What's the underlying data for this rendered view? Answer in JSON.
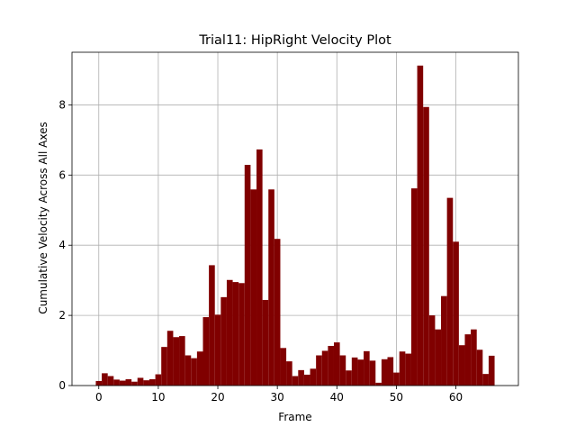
{
  "chart_data": {
    "type": "bar",
    "title": "Trial11: HipRight Velocity Plot",
    "xlabel": "Frame",
    "ylabel": "Cumulative Velocity Across All Axes",
    "xlim": [
      -4.5,
      70.5
    ],
    "ylim": [
      0,
      9.5
    ],
    "xticks": [
      0,
      10,
      20,
      30,
      40,
      50,
      60
    ],
    "yticks": [
      0,
      2,
      4,
      6,
      8
    ],
    "grid": true,
    "bar_width": 1,
    "bar_color": "#800000",
    "x": [
      0,
      1,
      2,
      3,
      4,
      5,
      6,
      7,
      8,
      9,
      10,
      11,
      12,
      13,
      14,
      15,
      16,
      17,
      18,
      19,
      20,
      21,
      22,
      23,
      24,
      25,
      26,
      27,
      28,
      29,
      30,
      31,
      32,
      33,
      34,
      35,
      36,
      37,
      38,
      39,
      40,
      41,
      42,
      43,
      44,
      45,
      46,
      47,
      48,
      49,
      50,
      51,
      52,
      53,
      54,
      55,
      56,
      57,
      58,
      59,
      60,
      61,
      62,
      63,
      64,
      65,
      66
    ],
    "values": [
      0.13,
      0.35,
      0.27,
      0.17,
      0.14,
      0.18,
      0.11,
      0.22,
      0.15,
      0.18,
      0.32,
      1.1,
      1.56,
      1.38,
      1.41,
      0.86,
      0.78,
      0.97,
      1.95,
      3.43,
      2.02,
      2.52,
      3.01,
      2.95,
      2.92,
      6.29,
      5.59,
      6.73,
      2.44,
      5.59,
      4.18,
      1.07,
      0.69,
      0.27,
      0.44,
      0.31,
      0.48,
      0.86,
      0.99,
      1.13,
      1.23,
      0.86,
      0.43,
      0.8,
      0.74,
      0.98,
      0.71,
      0.08,
      0.75,
      0.81,
      0.37,
      0.97,
      0.91,
      5.62,
      9.12,
      7.94,
      2.0,
      1.6,
      2.55,
      5.35,
      4.1,
      1.15,
      1.46,
      1.6,
      1.02,
      0.33,
      0.85
    ]
  }
}
